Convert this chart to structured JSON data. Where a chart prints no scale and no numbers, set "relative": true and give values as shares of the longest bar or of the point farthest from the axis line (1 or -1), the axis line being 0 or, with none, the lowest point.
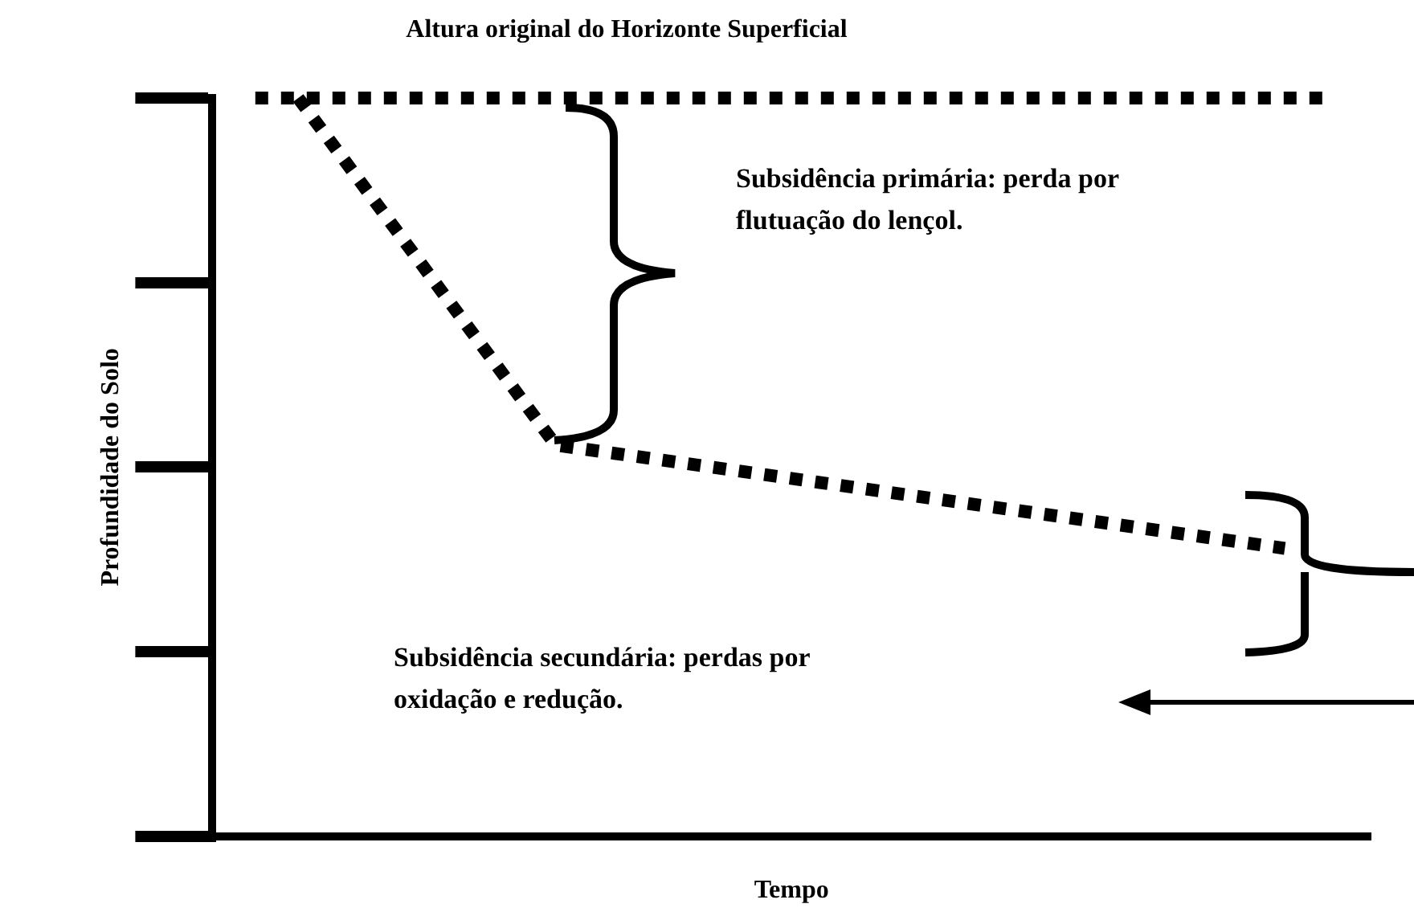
{
  "chart_data": {
    "type": "line",
    "title": "Altura original do Horizonte Superficial",
    "xlabel": "Tempo",
    "ylabel": "Profundidade do Solo",
    "relative": true,
    "legend": false,
    "grid": false,
    "marker": "none",
    "line_style": "dotted",
    "categories": [
      null,
      null,
      null,
      null,
      null,
      null,
      null,
      null,
      null,
      null,
      null,
      null,
      null,
      null,
      null,
      null,
      null,
      null,
      null,
      null,
      null,
      null,
      null,
      null,
      null,
      null,
      null,
      null
    ],
    "series": [
      {
        "color": "#000000",
        "values": [
          null,
          1,
          null,
          null,
          null,
          null,
          null,
          null,
          null,
          null,
          null,
          null,
          null,
          null,
          null,
          null,
          null,
          null,
          null,
          null,
          null,
          null,
          null,
          null,
          null,
          null,
          1,
          null
        ]
      },
      {
        "color": "#000000",
        "values": [
          null,
          null,
          1,
          null,
          null,
          null,
          null,
          null,
          0.53,
          null,
          null,
          null,
          null,
          null,
          null,
          null,
          null,
          null,
          null,
          null,
          null,
          null,
          null,
          null,
          null,
          0.39,
          null,
          null
        ]
      }
    ],
    "annotations": [
      "Subsidência primária: perda por\nflutuação do lençol.",
      "Subsidência secundária: perdas por\noxidação e redução."
    ]
  }
}
